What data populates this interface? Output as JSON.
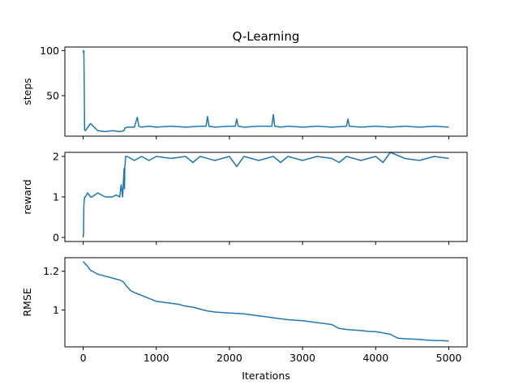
{
  "chart_data": {
    "type": "line",
    "title": "Q-Learning",
    "xlabel": "Iterations",
    "xlim": [
      -250,
      5250
    ],
    "xticks": [
      0,
      1000,
      2000,
      3000,
      4000,
      5000
    ],
    "line_color": "#1f77b4",
    "subplots": [
      {
        "id": "steps",
        "ylabel": "steps",
        "ylim": [
          5,
          104
        ],
        "yticks": [
          100,
          50
        ],
        "series": [
          {
            "x": [
              0,
              5,
              10,
              15,
              20,
              30,
              100,
              200,
              300,
              400,
              500,
              560,
              570,
              600,
              700,
              740,
              760,
              800,
              900,
              1000,
              1200,
              1400,
              1600,
              1680,
              1700,
              1720,
              1800,
              2000,
              2080,
              2100,
              2120,
              2200,
              2400,
              2580,
              2600,
              2620,
              2700,
              2800,
              3000,
              3200,
              3400,
              3600,
              3620,
              3640,
              3800,
              4000,
              4200,
              4400,
              4600,
              4800,
              5000
            ],
            "y": [
              100,
              98,
              100,
              60,
              12,
              11,
              19,
              11,
              10,
              11,
              10,
              11,
              14,
              15,
              15,
              26,
              16,
              15,
              16,
              15,
              16,
              15,
              16,
              16,
              27,
              16,
              15,
              16,
              16,
              24,
              16,
              15,
              16,
              16,
              29,
              16,
              15,
              16,
              15,
              16,
              15,
              16,
              24,
              16,
              15,
              16,
              15,
              16,
              15,
              16,
              15
            ]
          }
        ]
      },
      {
        "id": "reward",
        "ylabel": "reward",
        "ylim": [
          -0.1,
          2.1
        ],
        "yticks": [
          0,
          1,
          2
        ],
        "series": [
          {
            "x": [
              0,
              5,
              10,
              20,
              30,
              60,
              100,
              120,
              200,
              300,
              400,
              450,
              500,
              520,
              540,
              560,
              565,
              570,
              580,
              600,
              700,
              800,
              900,
              1000,
              1200,
              1400,
              1500,
              1600,
              1800,
              2000,
              2100,
              2200,
              2400,
              2600,
              2700,
              2800,
              3000,
              3200,
              3400,
              3500,
              3600,
              3800,
              4000,
              4100,
              4200,
              4400,
              4600,
              4800,
              5000
            ],
            "y": [
              0,
              0.1,
              0.8,
              1.0,
              1.0,
              1.1,
              1.0,
              1.0,
              1.1,
              1.0,
              1.0,
              1.05,
              1.0,
              1.3,
              1.0,
              1.7,
              1.2,
              1.7,
              2.0,
              2.0,
              1.9,
              2.0,
              1.9,
              2.0,
              1.95,
              2.0,
              1.85,
              2.0,
              1.9,
              2.0,
              1.75,
              2.0,
              1.9,
              2.0,
              1.85,
              2.0,
              1.9,
              2.0,
              1.95,
              1.85,
              2.0,
              1.9,
              2.0,
              1.85,
              2.1,
              1.95,
              1.9,
              2.0,
              1.95
            ]
          }
        ]
      },
      {
        "id": "rmse",
        "ylabel": "RMSE",
        "ylim": [
          0.81,
          1.27
        ],
        "yticks": [
          1.2,
          1.0
        ],
        "series": [
          {
            "x": [
              0,
              50,
              100,
              150,
              200,
              300,
              400,
              500,
              550,
              600,
              650,
              700,
              800,
              900,
              1000,
              1100,
              1200,
              1300,
              1400,
              1500,
              1600,
              1700,
              1800,
              2000,
              2200,
              2400,
              2600,
              2800,
              3000,
              3200,
              3300,
              3400,
              3500,
              3600,
              3700,
              3800,
              3900,
              4000,
              4100,
              4200,
              4300,
              4400,
              4500,
              4600,
              4700,
              4800,
              4900,
              5000
            ],
            "y": [
              1.25,
              1.23,
              1.205,
              1.195,
              1.185,
              1.175,
              1.165,
              1.155,
              1.145,
              1.12,
              1.1,
              1.09,
              1.075,
              1.06,
              1.045,
              1.04,
              1.035,
              1.03,
              1.02,
              1.015,
              1.005,
              0.995,
              0.99,
              0.985,
              0.98,
              0.97,
              0.96,
              0.95,
              0.945,
              0.935,
              0.93,
              0.925,
              0.905,
              0.9,
              0.897,
              0.894,
              0.89,
              0.888,
              0.882,
              0.875,
              0.855,
              0.852,
              0.85,
              0.848,
              0.845,
              0.843,
              0.842,
              0.84
            ]
          }
        ]
      }
    ]
  }
}
